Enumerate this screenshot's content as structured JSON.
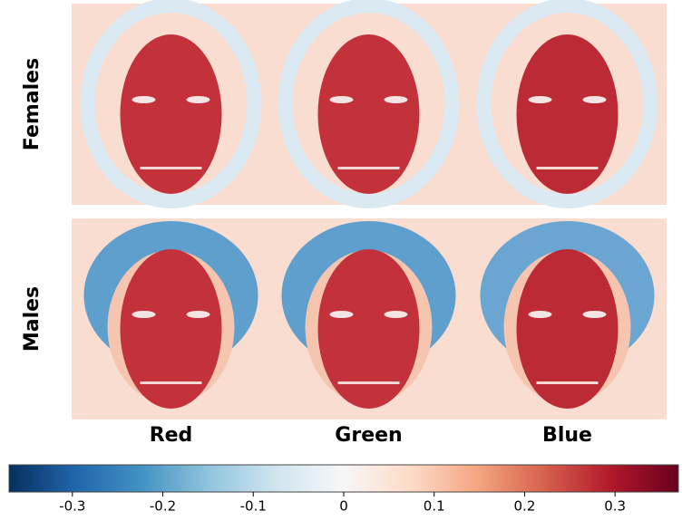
{
  "chart_data": {
    "type": "heatmap",
    "rows": [
      "Females",
      "Males"
    ],
    "columns": [
      "Red",
      "Green",
      "Blue"
    ],
    "colorbar": {
      "lim": [
        -0.37,
        0.37
      ],
      "ticks": [
        -0.3,
        -0.2,
        -0.1,
        0,
        0.1,
        0.2,
        0.3
      ],
      "colors": [
        "#053061",
        "#2166ac",
        "#4393c3",
        "#92c5de",
        "#d1e5f0",
        "#f7f7f7",
        "#fddbc7",
        "#f4a582",
        "#d6604d",
        "#b2182b",
        "#67001f"
      ]
    }
  }
}
